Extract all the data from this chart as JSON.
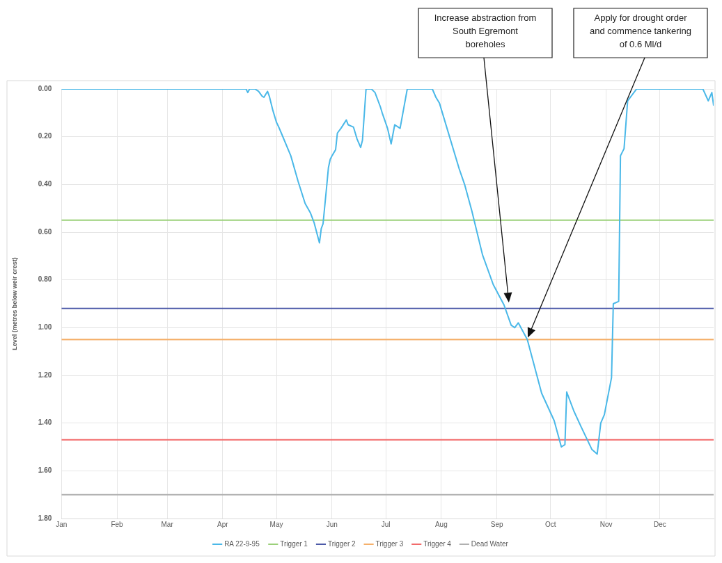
{
  "chart_data": {
    "type": "line",
    "ylabel": "Level (metres below weir crest)",
    "xlim": [
      "--01-01",
      "--12-31"
    ],
    "xticks": [
      {
        "value": "--01-01",
        "label": "Jan"
      },
      {
        "value": "--02-01",
        "label": "Feb"
      },
      {
        "value": "--03-01",
        "label": "Mar"
      },
      {
        "value": "--04-01",
        "label": "Apr"
      },
      {
        "value": "--05-01",
        "label": "May"
      },
      {
        "value": "--06-01",
        "label": "Jun"
      },
      {
        "value": "--07-01",
        "label": "Jul"
      },
      {
        "value": "--08-01",
        "label": "Aug"
      },
      {
        "value": "--09-01",
        "label": "Sep"
      },
      {
        "value": "--10-01",
        "label": "Oct"
      },
      {
        "value": "--11-01",
        "label": "Nov"
      },
      {
        "value": "--12-01",
        "label": "Dec"
      }
    ],
    "ylim": [
      1.8,
      0
    ],
    "yticks": [
      {
        "value": 0,
        "label": "0.00"
      },
      {
        "value": 0.2,
        "label": "0.20"
      },
      {
        "value": 0.4,
        "label": "0.40"
      },
      {
        "value": 0.6,
        "label": "0.60"
      },
      {
        "value": 0.8,
        "label": "0.80"
      },
      {
        "value": 1,
        "label": "1.00"
      },
      {
        "value": 1.2,
        "label": "1.20"
      },
      {
        "value": 1.4,
        "label": "1.40"
      },
      {
        "value": 1.6,
        "label": "1.60"
      },
      {
        "value": 1.8,
        "label": "1.80"
      }
    ],
    "grid": true,
    "legend": "bottom",
    "line_style": "solid",
    "series": [
      {
        "name": "RA 22-9-95",
        "color": "#4ab8e8",
        "x": [
          "--01-01",
          "--04-14",
          "--04-15",
          "--04-16",
          "--04-19",
          "--04-21",
          "--04-23",
          "--04-24",
          "--04-26",
          "--04-27",
          "--04-29",
          "--05-01",
          "--05-02",
          "--05-04",
          "--05-09",
          "--05-13",
          "--05-17",
          "--05-20",
          "--05-22",
          "--05-25",
          "--05-26",
          "--05-27",
          "--05-29",
          "--05-30",
          "--05-31",
          "--06-01",
          "--06-03",
          "--06-04",
          "--06-06",
          "--06-09",
          "--06-10",
          "--06-13",
          "--06-15",
          "--06-17",
          "--06-18",
          "--06-20",
          "--06-23",
          "--06-25",
          "--06-28",
          "--06-29",
          "--07-02",
          "--07-04",
          "--07-06",
          "--07-09",
          "--07-13",
          "--07-27",
          "--07-29",
          "--07-31",
          "--08-03",
          "--08-11",
          "--08-14",
          "--08-18",
          "--08-24",
          "--08-30",
          "--09-05",
          "--09-09",
          "--09-11",
          "--09-13",
          "--09-18",
          "--09-26",
          "--10-03",
          "--10-07",
          "--10-09",
          "--10-10",
          "--10-14",
          "--10-18",
          "--10-24",
          "--10-27",
          "--10-29",
          "--10-31",
          "--11-04",
          "--11-05",
          "--11-08",
          "--11-09",
          "--11-11",
          "--11-13",
          "--11-18",
          "--12-25",
          "--12-28",
          "--12-30",
          "--12-31"
        ],
        "values": [
          0,
          0,
          0.015,
          0,
          0,
          0.01,
          0.03,
          0.035,
          0.01,
          0.03,
          0.09,
          0.14,
          0.155,
          0.19,
          0.28,
          0.385,
          0.48,
          0.52,
          0.56,
          0.645,
          0.585,
          0.565,
          0.41,
          0.33,
          0.295,
          0.28,
          0.255,
          0.185,
          0.165,
          0.13,
          0.15,
          0.16,
          0.21,
          0.245,
          0.215,
          0,
          0,
          0.015,
          0.075,
          0.1,
          0.165,
          0.23,
          0.15,
          0.165,
          0,
          0,
          0.035,
          0.06,
          0.135,
          0.335,
          0.4,
          0.51,
          0.695,
          0.82,
          0.905,
          0.99,
          1,
          0.98,
          1.05,
          1.275,
          1.39,
          1.5,
          1.49,
          1.27,
          1.35,
          1.415,
          1.51,
          1.53,
          1.4,
          1.365,
          1.21,
          0.9,
          0.89,
          0.28,
          0.25,
          0.05,
          0,
          0,
          0.05,
          0.015,
          0.07
        ]
      },
      {
        "name": "Trigger 1",
        "color": "#9bd07a",
        "x": [
          "--01-01",
          "--12-31"
        ],
        "values": [
          0.55,
          0.55
        ]
      },
      {
        "name": "Trigger 2",
        "color": "#4d5aa8",
        "x": [
          "--01-01",
          "--12-31"
        ],
        "values": [
          0.92,
          0.92
        ]
      },
      {
        "name": "Trigger 3",
        "color": "#f5b06b",
        "x": [
          "--01-01",
          "--12-31"
        ],
        "values": [
          1.05,
          1.05
        ]
      },
      {
        "name": "Trigger 4",
        "color": "#f26b6b",
        "x": [
          "--01-01",
          "--12-31"
        ],
        "values": [
          1.47,
          1.47
        ]
      },
      {
        "name": "Dead Water",
        "color": "#b0b0b0",
        "x": [
          "--01-01",
          "--12-31"
        ],
        "values": [
          1.7,
          1.7
        ]
      }
    ],
    "annotations": [
      "Increase abstraction from South Egremont boreholes",
      "Apply for drought order and commence tankering of 0.6 Ml/d"
    ]
  }
}
